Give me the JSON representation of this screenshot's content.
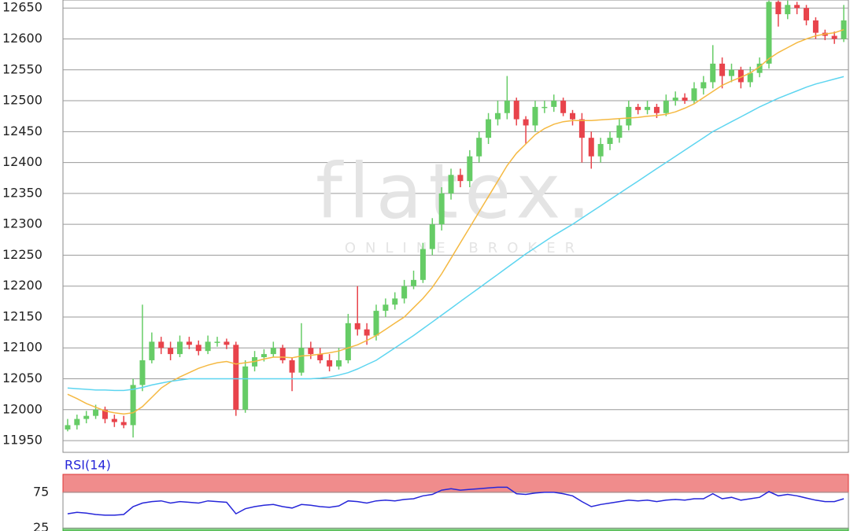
{
  "watermark": {
    "brand": "flatex.",
    "tagline": "ONLINE BROKER"
  },
  "chart_data": [
    {
      "type": "candlestick",
      "grid": true,
      "up_color": "#66cc66",
      "down_color": "#e8434b",
      "ylim": [
        11931,
        12663
      ],
      "yticks": [
        11950,
        12000,
        12050,
        12100,
        12150,
        12200,
        12250,
        12300,
        12350,
        12400,
        12450,
        12500,
        12550,
        12600,
        12650
      ],
      "open": [
        11968,
        11975,
        11985,
        11990,
        12000,
        11985,
        11980,
        11975,
        12040,
        12080,
        12110,
        12100,
        12090,
        12110,
        12105,
        12095,
        12110,
        12110,
        12105,
        12000,
        12070,
        12085,
        12090,
        12100,
        12080,
        12060,
        12100,
        12090,
        12080,
        12070,
        12080,
        12140,
        12130,
        12120,
        12160,
        12170,
        12180,
        12200,
        12210,
        12260,
        12300,
        12350,
        12380,
        12370,
        12410,
        12440,
        12470,
        12480,
        12500,
        12470,
        12460,
        12490,
        12490,
        12500,
        12480,
        12470,
        12440,
        12410,
        12430,
        12440,
        12460,
        12490,
        12485,
        12490,
        12480,
        12500,
        12505,
        12500,
        12520,
        12530,
        12560,
        12540,
        12550,
        12530,
        12545,
        12560,
        12660,
        12640,
        12655,
        12650,
        12630,
        12610,
        12605,
        12600
      ],
      "high": [
        11985,
        11992,
        11998,
        12008,
        12005,
        11992,
        11990,
        12050,
        12170,
        12125,
        12118,
        12110,
        12120,
        12118,
        12112,
        12120,
        12118,
        12115,
        12110,
        12080,
        12095,
        12098,
        12110,
        12105,
        12085,
        12140,
        12110,
        12100,
        12090,
        12100,
        12155,
        12200,
        12140,
        12170,
        12180,
        12190,
        12210,
        12225,
        12270,
        12310,
        12360,
        12390,
        12390,
        12420,
        12450,
        12480,
        12500,
        12540,
        12505,
        12475,
        12500,
        12500,
        12510,
        12505,
        12485,
        12480,
        12450,
        12440,
        12450,
        12470,
        12500,
        12495,
        12500,
        12495,
        12510,
        12515,
        12512,
        12530,
        12540,
        12590,
        12570,
        12560,
        12555,
        12555,
        12570,
        12662,
        12662,
        12662,
        12660,
        12655,
        12635,
        12615,
        12612,
        12655
      ],
      "low": [
        11965,
        11968,
        11978,
        11985,
        11978,
        11972,
        11970,
        11955,
        12030,
        12075,
        12090,
        12080,
        12085,
        12098,
        12088,
        12090,
        12102,
        12098,
        11990,
        11995,
        12062,
        12078,
        12085,
        12075,
        12030,
        12055,
        12082,
        12075,
        12062,
        12065,
        12075,
        12120,
        12105,
        12112,
        12150,
        12162,
        12172,
        12195,
        12205,
        12250,
        12290,
        12340,
        12360,
        12360,
        12400,
        12430,
        12460,
        12470,
        12460,
        12430,
        12450,
        12480,
        12482,
        12475,
        12460,
        12400,
        12390,
        12400,
        12420,
        12432,
        12452,
        12478,
        12478,
        12472,
        12475,
        12492,
        12495,
        12495,
        12510,
        12520,
        12520,
        12530,
        12520,
        12522,
        12538,
        12552,
        12620,
        12632,
        12640,
        12622,
        12600,
        12598,
        12592,
        12595
      ],
      "close": [
        11975,
        11985,
        11990,
        12000,
        11985,
        11980,
        11975,
        12040,
        12080,
        12110,
        12100,
        12090,
        12110,
        12105,
        12095,
        12110,
        12110,
        12105,
        12000,
        12070,
        12085,
        12090,
        12100,
        12080,
        12060,
        12100,
        12090,
        12080,
        12070,
        12080,
        12140,
        12130,
        12120,
        12160,
        12170,
        12180,
        12200,
        12210,
        12260,
        12300,
        12350,
        12380,
        12370,
        12410,
        12440,
        12470,
        12480,
        12500,
        12470,
        12460,
        12490,
        12490,
        12500,
        12480,
        12470,
        12440,
        12410,
        12430,
        12440,
        12460,
        12490,
        12485,
        12490,
        12480,
        12500,
        12505,
        12500,
        12520,
        12530,
        12560,
        12540,
        12550,
        12530,
        12545,
        12560,
        12660,
        12640,
        12655,
        12650,
        12630,
        12610,
        12605,
        12600,
        12630
      ],
      "series": [
        {
          "color": "#f5b942",
          "values": [
            12025,
            12018,
            12010,
            12004,
            11998,
            11995,
            11993,
            11995,
            12005,
            12020,
            12035,
            12045,
            12053,
            12060,
            12067,
            12072,
            12076,
            12078,
            12074,
            12076,
            12078,
            12082,
            12085,
            12085,
            12084,
            12087,
            12088,
            12090,
            12092,
            12095,
            12100,
            12105,
            12112,
            12120,
            12130,
            12140,
            12150,
            12165,
            12180,
            12198,
            12220,
            12245,
            12270,
            12295,
            12320,
            12345,
            12370,
            12395,
            12415,
            12430,
            12445,
            12455,
            12462,
            12466,
            12468,
            12468,
            12468,
            12469,
            12470,
            12471,
            12472,
            12473,
            12475,
            12476,
            12478,
            12482,
            12488,
            12495,
            12505,
            12515,
            12525,
            12532,
            12538,
            12545,
            12555,
            12568,
            12578,
            12586,
            12594,
            12600,
            12605,
            12608,
            12610,
            12615
          ]
        },
        {
          "color": "#5dd5f0",
          "values": [
            12035,
            12034,
            12033,
            12032,
            12032,
            12031,
            12031,
            12033,
            12036,
            12040,
            12043,
            12046,
            12048,
            12050,
            12050,
            12050,
            12050,
            12050,
            12050,
            12050,
            12050,
            12050,
            12050,
            12050,
            12050,
            12050,
            12050,
            12051,
            12053,
            12056,
            12060,
            12066,
            12073,
            12080,
            12090,
            12100,
            12110,
            12120,
            12131,
            12142,
            12153,
            12164,
            12175,
            12186,
            12197,
            12208,
            12219,
            12230,
            12241,
            12252,
            12262,
            12272,
            12282,
            12291,
            12300,
            12310,
            12320,
            12330,
            12340,
            12350,
            12360,
            12370,
            12380,
            12390,
            12400,
            12410,
            12420,
            12430,
            12440,
            12450,
            12458,
            12466,
            12474,
            12482,
            12490,
            12497,
            12504,
            12510,
            12516,
            12522,
            12527,
            12531,
            12535,
            12539
          ]
        }
      ]
    },
    {
      "type": "line",
      "title": "RSI(14)",
      "ylim": [
        21,
        100
      ],
      "yticks": [
        25,
        75
      ],
      "overbought_color": "#f08c8c",
      "oversold_color": "#7ccf7c",
      "series": [
        {
          "color": "#2626d9",
          "values": [
            45,
            47,
            46,
            44,
            43,
            43,
            44,
            55,
            60,
            62,
            63,
            60,
            62,
            61,
            60,
            63,
            62,
            61,
            45,
            52,
            55,
            57,
            58,
            55,
            53,
            58,
            57,
            55,
            54,
            56,
            63,
            62,
            60,
            63,
            64,
            63,
            65,
            66,
            70,
            72,
            78,
            80,
            78,
            79,
            80,
            81,
            82,
            82,
            73,
            72,
            74,
            75,
            75,
            73,
            70,
            62,
            55,
            58,
            60,
            62,
            64,
            63,
            64,
            62,
            64,
            65,
            64,
            66,
            66,
            73,
            66,
            68,
            64,
            66,
            68,
            76,
            70,
            72,
            70,
            67,
            64,
            62,
            62,
            66
          ]
        }
      ]
    }
  ]
}
